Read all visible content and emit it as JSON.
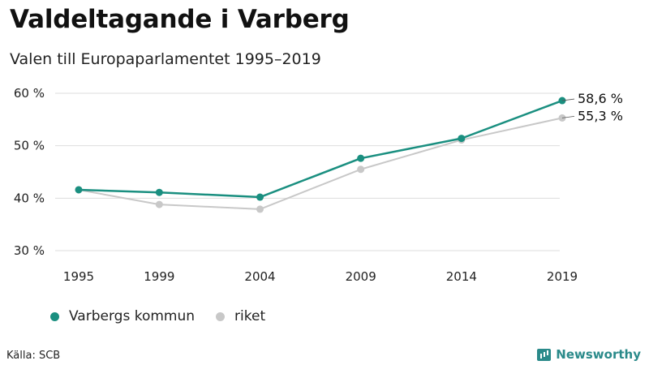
{
  "header": {
    "title": "Valdeltagande i Varberg",
    "subtitle": "Valen till Europaparlamentet 1995–2019"
  },
  "footer": {
    "source": "Källa: SCB",
    "brand": "Newsworthy"
  },
  "colors": {
    "primary": "#1a8f80",
    "secondary": "#c8c8c8",
    "grid": "#dddddd",
    "brand": "#2a8a8a"
  },
  "chart_data": {
    "type": "line",
    "title": "Valdeltagande i Varberg",
    "subtitle": "Valen till Europaparlamentet 1995–2019",
    "categories": [
      "1995",
      "1999",
      "2004",
      "2009",
      "2014",
      "2019"
    ],
    "y_ticks": [
      30,
      40,
      50,
      60
    ],
    "y_tick_labels": [
      "30 %",
      "40 %",
      "50 %",
      "60 %"
    ],
    "ylim": [
      30,
      60
    ],
    "grid": true,
    "legend_position": "bottom-left",
    "series": [
      {
        "name": "Varbergs kommun",
        "values": [
          41.6,
          41.1,
          40.2,
          47.6,
          51.4,
          58.6
        ],
        "color": "#1a8f80",
        "end_label": "58,6 %"
      },
      {
        "name": "riket",
        "values": [
          41.6,
          38.8,
          37.9,
          45.5,
          51.1,
          55.3
        ],
        "color": "#c8c8c8",
        "end_label": "55,3 %"
      }
    ]
  }
}
